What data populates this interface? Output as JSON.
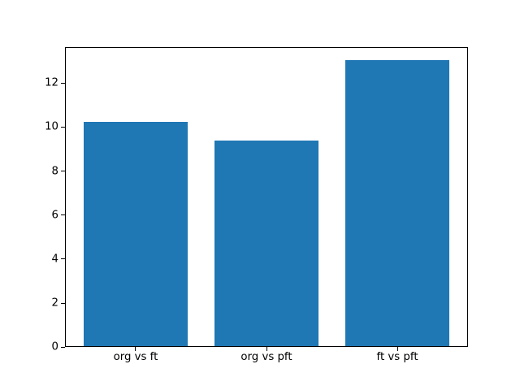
{
  "chart_data": {
    "type": "bar",
    "title": "",
    "xlabel": "",
    "ylabel": "",
    "categories": [
      "org vs ft",
      "org vs pft",
      "ft vs pft"
    ],
    "values": [
      10.2,
      9.35,
      13.0
    ],
    "yticks": [
      0,
      2,
      4,
      6,
      8,
      10,
      12
    ],
    "ylim": [
      0,
      13.65
    ],
    "grid": false,
    "legend": "none",
    "bar_color": "#1f77b4",
    "spine_color": "#000000",
    "tick_label_color": "#000000",
    "background_color": "#ffffff"
  }
}
